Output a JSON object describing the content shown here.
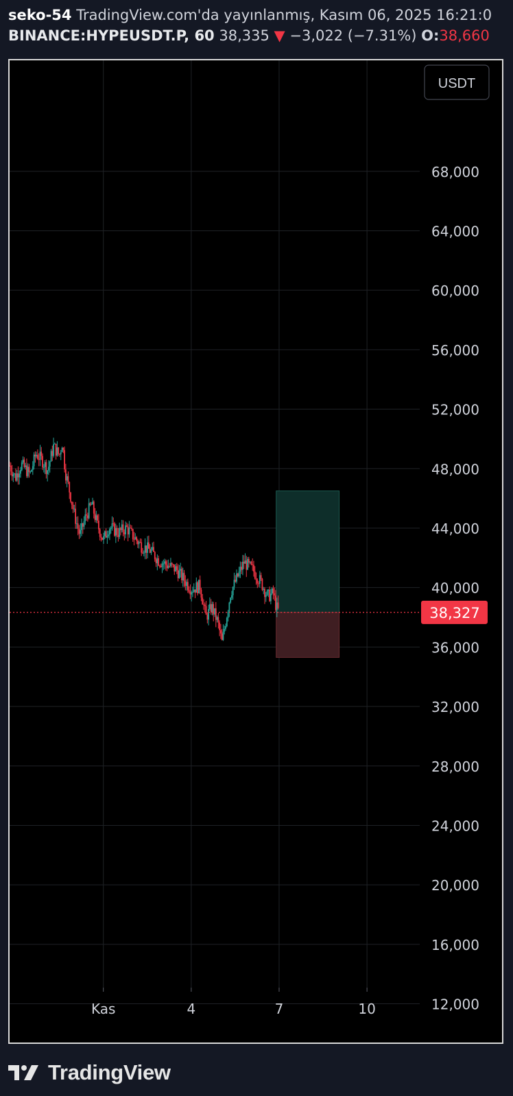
{
  "header": {
    "author": "seko-54",
    "published": "TradingView.com'da yayınlanmış, Kasım 06, 2025 16:21:0",
    "symbol": "BINANCE:HYPEUSDT.P, 60",
    "price": "38,335",
    "change": "−3,022 (−7.31%)",
    "open_label": "O:",
    "open_value": "38,660",
    "arrow_icon": "triangle-down-icon"
  },
  "currency_button": "USDT",
  "chart_data": {
    "type": "candlestick",
    "ylim": [
      11000,
      71000
    ],
    "y_ticks": [
      {
        "value": 68000,
        "label": "68,000"
      },
      {
        "value": 64000,
        "label": "64,000"
      },
      {
        "value": 60000,
        "label": "60,000"
      },
      {
        "value": 56000,
        "label": "56,000"
      },
      {
        "value": 52000,
        "label": "52,000"
      },
      {
        "value": 48000,
        "label": "48,000"
      },
      {
        "value": 44000,
        "label": "44,000"
      },
      {
        "value": 40000,
        "label": "40,000"
      },
      {
        "value": 36000,
        "label": "36,000"
      },
      {
        "value": 32000,
        "label": "32,000"
      },
      {
        "value": 28000,
        "label": "28,000"
      },
      {
        "value": 24000,
        "label": "24,000"
      },
      {
        "value": 20000,
        "label": "20,000"
      },
      {
        "value": 16000,
        "label": "16,000"
      },
      {
        "value": 12000,
        "label": "12,000"
      }
    ],
    "x_ticks": [
      {
        "day": 1,
        "label": "Kas"
      },
      {
        "day": 4,
        "label": "4"
      },
      {
        "day": 7,
        "label": "7"
      },
      {
        "day": 10,
        "label": "10"
      }
    ],
    "x_range_days": [
      -2.2,
      11.8
    ],
    "price_path": [
      [
        -2.2,
        48200
      ],
      [
        -2.0,
        47400
      ],
      [
        -1.8,
        48300
      ],
      [
        -1.5,
        47600
      ],
      [
        -1.3,
        49000
      ],
      [
        -1.1,
        48600
      ],
      [
        -0.9,
        47900
      ],
      [
        -0.7,
        49500
      ],
      [
        -0.5,
        48900
      ],
      [
        -0.4,
        49800
      ],
      [
        -0.3,
        47800
      ],
      [
        -0.1,
        46000
      ],
      [
        0.0,
        45000
      ],
      [
        0.2,
        43500
      ],
      [
        0.4,
        44800
      ],
      [
        0.6,
        45600
      ],
      [
        0.8,
        44200
      ],
      [
        1.0,
        43200
      ],
      [
        1.2,
        44100
      ],
      [
        1.5,
        43700
      ],
      [
        1.8,
        44000
      ],
      [
        2.0,
        43500
      ],
      [
        2.3,
        42800
      ],
      [
        2.6,
        42500
      ],
      [
        2.9,
        41800
      ],
      [
        3.2,
        41500
      ],
      [
        3.5,
        41200
      ],
      [
        3.8,
        40400
      ],
      [
        4.0,
        39900
      ],
      [
        4.3,
        40100
      ],
      [
        4.5,
        38000
      ],
      [
        4.7,
        38700
      ],
      [
        4.9,
        37700
      ],
      [
        5.05,
        36300
      ],
      [
        5.2,
        38000
      ],
      [
        5.35,
        39700
      ],
      [
        5.6,
        40800
      ],
      [
        5.8,
        41700
      ],
      [
        6.1,
        41200
      ],
      [
        6.4,
        40300
      ],
      [
        6.6,
        39400
      ],
      [
        6.8,
        39600
      ],
      [
        6.9,
        38700
      ],
      [
        7.0,
        38335
      ]
    ],
    "last_price": 38327,
    "last_price_label": "38,327",
    "position": {
      "type": "long",
      "entry": 38327,
      "target": 46500,
      "stop": 35300,
      "x_start_day": 6.9,
      "x_end_day": 9.05
    },
    "colors": {
      "up": "#26a69a",
      "down": "#f23645",
      "grid": "#1f2226",
      "profit_zone": "#0e2e2a",
      "loss_zone": "#3f1e22",
      "price_line": "#f23645"
    }
  },
  "logo": {
    "icon": "tradingview-logo-icon",
    "text": "TradingView"
  }
}
